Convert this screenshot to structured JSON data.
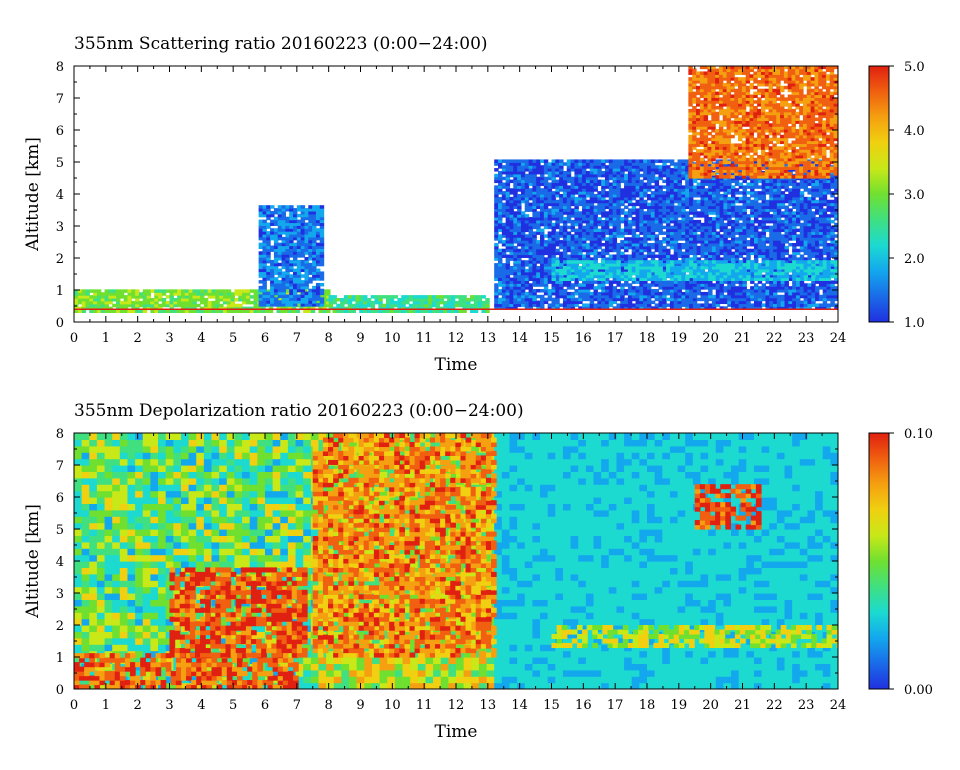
{
  "chart_data": [
    {
      "type": "heatmap",
      "title": "355nm Scattering ratio  20160223 (0:00−24:00)",
      "xlabel": "Time",
      "ylabel": "Altitude [km]",
      "xlim": [
        0,
        24
      ],
      "ylim": [
        0,
        8
      ],
      "x_ticks": [
        "0",
        "1",
        "2",
        "3",
        "4",
        "5",
        "6",
        "7",
        "8",
        "9",
        "10",
        "11",
        "12",
        "13",
        "14",
        "15",
        "16",
        "17",
        "18",
        "19",
        "20",
        "21",
        "22",
        "23",
        "24"
      ],
      "y_ticks": [
        "0",
        "1",
        "2",
        "3",
        "4",
        "5",
        "6",
        "7",
        "8"
      ],
      "colorbar": {
        "range": [
          1.0,
          5.0
        ],
        "tick_labels": [
          "1.0",
          "2.0",
          "3.0",
          "4.0",
          "5.0"
        ],
        "tick_values": [
          1.0,
          2.0,
          3.0,
          4.0,
          5.0
        ]
      },
      "features": [
        {
          "time_range": [
            0,
            8
          ],
          "altitude_range": [
            0.3,
            1.0
          ],
          "value": 3.0
        },
        {
          "time_range": [
            5.8,
            7.8
          ],
          "altitude_range": [
            0.5,
            3.6
          ],
          "value": 1.5
        },
        {
          "time_range": [
            8,
            13
          ],
          "altitude_range": [
            0.3,
            0.8
          ],
          "value": 2.5
        },
        {
          "time_range": [
            13.2,
            24
          ],
          "altitude_range": [
            0.4,
            5.0
          ],
          "value": 1.3
        },
        {
          "time_range": [
            15,
            24
          ],
          "altitude_range": [
            1.3,
            1.9
          ],
          "value": 2.0
        },
        {
          "time_range": [
            19.3,
            24
          ],
          "altitude_range": [
            4.5,
            8.0
          ],
          "value": 4.5
        }
      ]
    },
    {
      "type": "heatmap",
      "title": "355nm Depolarization ratio  20160223 (0:00−24:00)",
      "xlabel": "Time",
      "ylabel": "Altitude [km]",
      "xlim": [
        0,
        24
      ],
      "ylim": [
        0,
        8
      ],
      "x_ticks": [
        "0",
        "1",
        "2",
        "3",
        "4",
        "5",
        "6",
        "7",
        "8",
        "9",
        "10",
        "11",
        "12",
        "13",
        "14",
        "15",
        "16",
        "17",
        "18",
        "19",
        "20",
        "21",
        "22",
        "23",
        "24"
      ],
      "y_ticks": [
        "0",
        "1",
        "2",
        "3",
        "4",
        "5",
        "6",
        "7",
        "8"
      ],
      "colorbar": {
        "range": [
          0.0,
          0.1
        ],
        "tick_labels": [
          "0.00",
          "0.10"
        ],
        "tick_values": [
          0.0,
          0.1
        ]
      },
      "features": [
        {
          "time_range": [
            0,
            7
          ],
          "altitude_range": [
            0,
            1.0
          ],
          "value": 0.09
        },
        {
          "time_range": [
            3,
            7.2
          ],
          "altitude_range": [
            1.0,
            3.8
          ],
          "value": 0.095
        },
        {
          "time_range": [
            7.5,
            13.2
          ],
          "altitude_range": [
            1.0,
            8.0
          ],
          "value": 0.085
        },
        {
          "time_range": [
            15,
            24
          ],
          "altitude_range": [
            1.3,
            2.0
          ],
          "value": 0.06
        },
        {
          "time_range": [
            19.5,
            21.5
          ],
          "altitude_range": [
            5.0,
            6.3
          ],
          "value": 0.095
        }
      ]
    }
  ],
  "colormap": [
    "#2030e0",
    "#1a6be8",
    "#13a8ee",
    "#1cdad0",
    "#40e080",
    "#70e030",
    "#c8e818",
    "#f0d010",
    "#f5a010",
    "#f06010",
    "#e02010"
  ]
}
